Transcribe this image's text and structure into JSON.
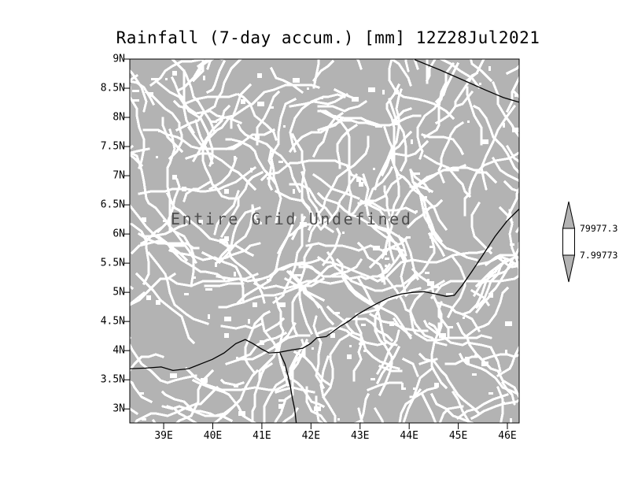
{
  "title": "Rainfall (7-day accum.) [mm] 12Z28Jul2021",
  "plot": {
    "annotation": "Entire Grid Undefined"
  },
  "axes": {
    "y_labels": [
      "9N",
      "8.5N",
      "8N",
      "7.5N",
      "7N",
      "6.5N",
      "6N",
      "5.5N",
      "5N",
      "4.5N",
      "4N",
      "3.5N",
      "3N"
    ],
    "x_labels": [
      "39E",
      "40E",
      "41E",
      "42E",
      "43E",
      "44E",
      "45E",
      "46E"
    ]
  },
  "colorbar": {
    "upper_label": "79977.3",
    "lower_label": "7.99773"
  },
  "colors": {
    "grid_fill": "#b3b3b3",
    "speckle": "#ffffff",
    "coastline": "#000000",
    "annotation_text": "#4f4f4f"
  },
  "chart_data": {
    "type": "heatmap",
    "title": "Rainfall (7-day accum.) [mm] 12Z28Jul2021",
    "x_tick_labels": [
      "39E",
      "40E",
      "41E",
      "42E",
      "43E",
      "44E",
      "45E",
      "46E"
    ],
    "y_tick_labels": [
      "9N",
      "8.5N",
      "8N",
      "7.5N",
      "7N",
      "6.5N",
      "6N",
      "5.5N",
      "5N",
      "4.5N",
      "4N",
      "3.5N",
      "3N"
    ],
    "x_range_deg_east": [
      38.31,
      46.24
    ],
    "y_range_deg_north": [
      2.76,
      9.0
    ],
    "values": "Entire Grid Undefined",
    "annotation": "Entire Grid Undefined",
    "colorbar_labels": [
      "79977.3",
      "7.99773"
    ],
    "legend_position": "right",
    "grid": false,
    "coastlines": [
      [
        [
          44.11,
          8.99
        ],
        [
          44.64,
          8.81
        ],
        [
          45.15,
          8.62
        ],
        [
          45.55,
          8.47
        ],
        [
          45.92,
          8.34
        ],
        [
          46.24,
          8.26
        ]
      ],
      [
        [
          38.31,
          3.69
        ],
        [
          38.63,
          3.7
        ],
        [
          38.95,
          3.72
        ],
        [
          39.19,
          3.66
        ],
        [
          39.51,
          3.69
        ],
        [
          39.75,
          3.77
        ],
        [
          39.99,
          3.85
        ],
        [
          40.23,
          3.96
        ],
        [
          40.47,
          4.12
        ],
        [
          40.66,
          4.19
        ],
        [
          40.82,
          4.12
        ],
        [
          40.99,
          4.03
        ],
        [
          41.15,
          3.96
        ],
        [
          41.35,
          3.97
        ],
        [
          41.59,
          4.01
        ],
        [
          41.83,
          4.04
        ],
        [
          41.99,
          4.12
        ],
        [
          42.12,
          4.22
        ],
        [
          42.31,
          4.24
        ],
        [
          42.47,
          4.34
        ],
        [
          42.6,
          4.42
        ],
        [
          42.76,
          4.5
        ],
        [
          42.95,
          4.62
        ],
        [
          43.15,
          4.72
        ],
        [
          43.35,
          4.81
        ],
        [
          43.59,
          4.91
        ],
        [
          43.83,
          4.97
        ],
        [
          44.07,
          5.0
        ],
        [
          44.31,
          5.01
        ],
        [
          44.55,
          4.97
        ],
        [
          44.76,
          4.93
        ],
        [
          44.92,
          4.95
        ],
        [
          45.08,
          5.12
        ],
        [
          45.27,
          5.35
        ],
        [
          45.51,
          5.65
        ],
        [
          45.75,
          5.96
        ],
        [
          45.99,
          6.22
        ],
        [
          46.24,
          6.43
        ]
      ],
      [
        [
          41.37,
          3.96
        ],
        [
          41.47,
          3.77
        ],
        [
          41.53,
          3.58
        ],
        [
          41.58,
          3.39
        ],
        [
          41.62,
          3.19
        ],
        [
          41.67,
          2.99
        ],
        [
          41.7,
          2.76
        ]
      ]
    ]
  }
}
